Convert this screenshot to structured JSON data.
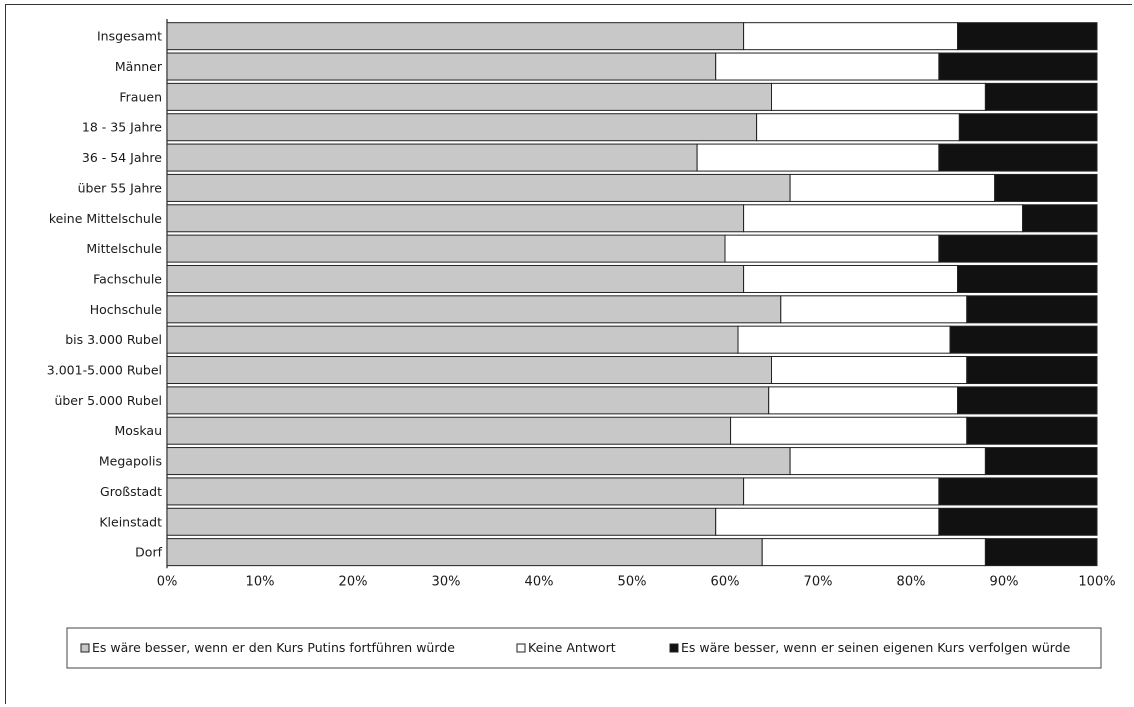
{
  "chart_data": {
    "type": "bar",
    "stacked": "100%",
    "orientation": "horizontal",
    "categories": [
      "Insgesamt",
      "Männer",
      "Frauen",
      "18 - 35 Jahre",
      "36 - 54 Jahre",
      "über 55 Jahre",
      "keine Mittelschule",
      "Mittelschule",
      "Fachschule",
      "Hochschule",
      "bis 3.000 Rubel",
      "3.001-5.000  Rubel",
      "über 5.000 Rubel",
      "Moskau",
      "Megapolis",
      "Großstadt",
      "Kleinstadt",
      "Dorf"
    ],
    "series": [
      {
        "name": "Es wäre besser, wenn er den Kurs Putins fortführen würde",
        "color": "#c8c8c8",
        "values": [
          62,
          59,
          65,
          63.4,
          57,
          67,
          62,
          60,
          62,
          66,
          61.4,
          65,
          64.7,
          60.6,
          67,
          62,
          59,
          64
        ]
      },
      {
        "name": "Keine Antwort",
        "color": "#ffffff",
        "values": [
          23,
          24,
          23,
          21.8,
          26,
          22,
          30,
          23,
          23,
          20,
          22.8,
          21,
          20.3,
          25.4,
          21,
          21,
          24,
          24
        ]
      },
      {
        "name": "Es wäre besser, wenn er seinen eigenen Kurs verfolgen würde",
        "color": "#111111",
        "values": [
          15,
          17,
          12,
          14.8,
          17,
          11,
          8,
          17,
          15,
          14,
          15.8,
          14,
          15,
          14,
          12,
          17,
          17,
          12
        ]
      }
    ],
    "xlim": [
      0,
      100
    ],
    "xticks": [
      "0%",
      "10%",
      "20%",
      "30%",
      "40%",
      "50%",
      "60%",
      "70%",
      "80%",
      "90%",
      "100%"
    ],
    "title": "",
    "xlabel": "",
    "ylabel": "",
    "grid": false,
    "legend_position": "bottom"
  }
}
